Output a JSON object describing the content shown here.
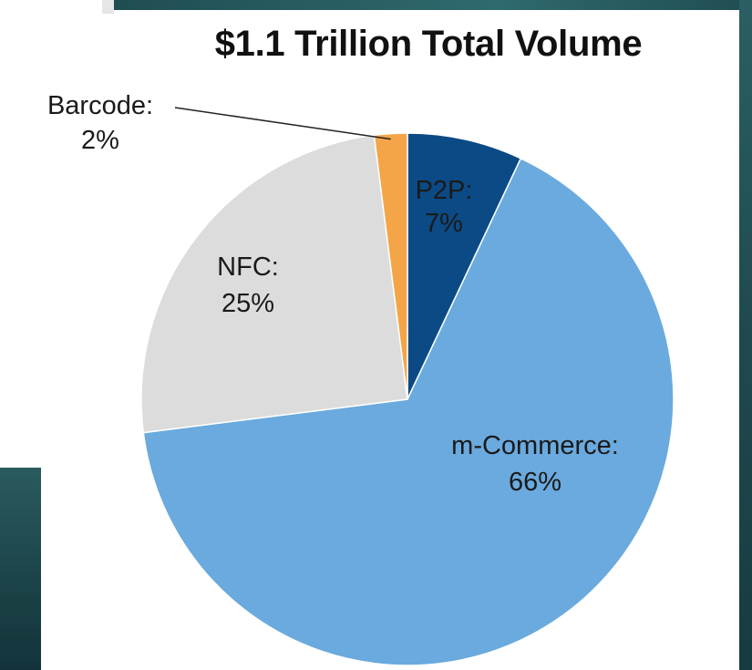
{
  "chart_data": {
    "type": "pie",
    "title": "$1.1 Trillion Total Volume",
    "series": [
      {
        "name": "",
        "slices": [
          {
            "label": "P2P:",
            "percent_label": "7%",
            "value": 7,
            "color": "#0b4a85"
          },
          {
            "label": "m-Commerce:",
            "percent_label": "66%",
            "value": 66,
            "color": "#6aaade"
          },
          {
            "label": "NFC:",
            "percent_label": "25%",
            "value": 25,
            "color": "#dcdcdc"
          },
          {
            "label": "Barcode:",
            "percent_label": "2%",
            "value": 2,
            "color": "#f4a548"
          }
        ]
      }
    ],
    "start_angle_deg": 0,
    "direction": "clockwise",
    "legend": "none"
  },
  "theme": {
    "background": "#ffffff",
    "edge_color": "#1f4d52"
  }
}
